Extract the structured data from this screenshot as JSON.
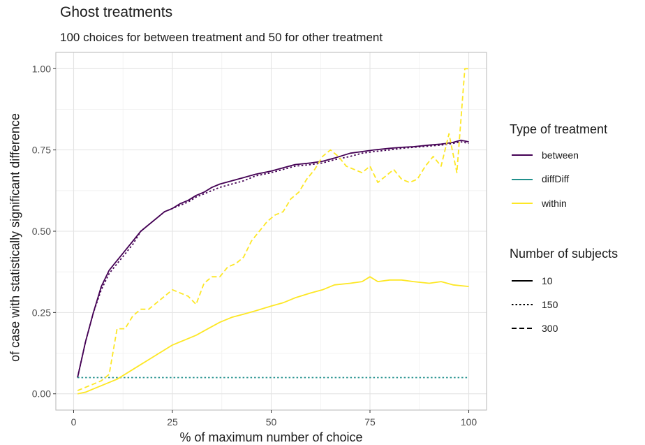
{
  "chart_data": {
    "type": "line",
    "title": "Ghost treatments",
    "subtitle": "100 choices for between treatment and 50 for other treatment",
    "xlabel": "% of maximum number of choice",
    "ylabel": "of case with statistically significant difference",
    "xlim": [
      -4.5,
      104.5
    ],
    "ylim": [
      -0.05,
      1.05
    ],
    "x_ticks": [
      0,
      25,
      50,
      75,
      100
    ],
    "y_ticks": [
      0,
      0.25,
      0.5,
      0.75,
      1
    ],
    "x_tick_labels": [
      "0",
      "25",
      "50",
      "75",
      "100"
    ],
    "y_tick_labels": [
      "0.00",
      "0.25",
      "0.50",
      "0.75",
      "1.00"
    ],
    "grid": true,
    "legend_position": "right",
    "legends": [
      {
        "title": "Type of treatment",
        "items": [
          {
            "label": "between",
            "color": "#440154"
          },
          {
            "label": "diffDiff",
            "color": "#21908C"
          },
          {
            "label": "within",
            "color": "#FDE725"
          }
        ]
      },
      {
        "title": "Number of subjects",
        "items": [
          {
            "label": "10",
            "dash": "solid"
          },
          {
            "label": "150",
            "dash": "dotted"
          },
          {
            "label": "300",
            "dash": "dashed"
          }
        ]
      }
    ],
    "series": [
      {
        "name": "between / 10",
        "treatment": "between",
        "subjects": "10",
        "color": "#440154",
        "dash": "solid",
        "points": [
          [
            1,
            0.05
          ],
          [
            3,
            0.16
          ],
          [
            5,
            0.25
          ],
          [
            7,
            0.33
          ],
          [
            9,
            0.38
          ],
          [
            11,
            0.41
          ],
          [
            13,
            0.44
          ],
          [
            15,
            0.47
          ],
          [
            17,
            0.5
          ],
          [
            19,
            0.52
          ],
          [
            21,
            0.54
          ],
          [
            23,
            0.56
          ],
          [
            25,
            0.57
          ],
          [
            27,
            0.585
          ],
          [
            29,
            0.595
          ],
          [
            31,
            0.61
          ],
          [
            33,
            0.62
          ],
          [
            35,
            0.635
          ],
          [
            37,
            0.645
          ],
          [
            40,
            0.655
          ],
          [
            43,
            0.665
          ],
          [
            46,
            0.675
          ],
          [
            50,
            0.685
          ],
          [
            53,
            0.695
          ],
          [
            56,
            0.705
          ],
          [
            60,
            0.71
          ],
          [
            63,
            0.715
          ],
          [
            66,
            0.725
          ],
          [
            70,
            0.74
          ],
          [
            73,
            0.745
          ],
          [
            76,
            0.75
          ],
          [
            80,
            0.755
          ],
          [
            83,
            0.758
          ],
          [
            86,
            0.76
          ],
          [
            90,
            0.765
          ],
          [
            93,
            0.768
          ],
          [
            96,
            0.773
          ],
          [
            98,
            0.78
          ],
          [
            100,
            0.775
          ]
        ]
      },
      {
        "name": "between / 150",
        "treatment": "between",
        "subjects": "150",
        "color": "#440154",
        "dash": "dotted",
        "points": [
          [
            1,
            0.05
          ],
          [
            3,
            0.16
          ],
          [
            5,
            0.25
          ],
          [
            7,
            0.32
          ],
          [
            9,
            0.37
          ],
          [
            11,
            0.4
          ],
          [
            13,
            0.43
          ],
          [
            15,
            0.46
          ],
          [
            17,
            0.5
          ],
          [
            19,
            0.52
          ],
          [
            21,
            0.54
          ],
          [
            23,
            0.56
          ],
          [
            25,
            0.57
          ],
          [
            27,
            0.58
          ],
          [
            29,
            0.59
          ],
          [
            31,
            0.605
          ],
          [
            33,
            0.615
          ],
          [
            35,
            0.625
          ],
          [
            37,
            0.635
          ],
          [
            40,
            0.645
          ],
          [
            43,
            0.655
          ],
          [
            46,
            0.67
          ],
          [
            50,
            0.68
          ],
          [
            53,
            0.69
          ],
          [
            56,
            0.7
          ],
          [
            60,
            0.705
          ],
          [
            63,
            0.71
          ],
          [
            66,
            0.72
          ],
          [
            70,
            0.73
          ],
          [
            73,
            0.74
          ],
          [
            76,
            0.745
          ],
          [
            80,
            0.75
          ],
          [
            83,
            0.755
          ],
          [
            86,
            0.758
          ],
          [
            90,
            0.762
          ],
          [
            93,
            0.765
          ],
          [
            96,
            0.77
          ],
          [
            98,
            0.775
          ],
          [
            100,
            0.77
          ]
        ]
      },
      {
        "name": "diffDiff / 150",
        "treatment": "diffDiff",
        "subjects": "150",
        "color": "#21908C",
        "dash": "dotted",
        "points": [
          [
            1,
            0.05
          ],
          [
            5,
            0.05
          ],
          [
            10,
            0.05
          ],
          [
            15,
            0.05
          ],
          [
            20,
            0.05
          ],
          [
            25,
            0.05
          ],
          [
            30,
            0.05
          ],
          [
            35,
            0.05
          ],
          [
            40,
            0.05
          ],
          [
            45,
            0.05
          ],
          [
            50,
            0.05
          ],
          [
            55,
            0.05
          ],
          [
            60,
            0.05
          ],
          [
            65,
            0.05
          ],
          [
            70,
            0.05
          ],
          [
            75,
            0.05
          ],
          [
            80,
            0.05
          ],
          [
            85,
            0.05
          ],
          [
            90,
            0.05
          ],
          [
            95,
            0.05
          ],
          [
            100,
            0.05
          ]
        ]
      },
      {
        "name": "within / 10",
        "treatment": "within",
        "subjects": "10",
        "color": "#FDE725",
        "dash": "solid",
        "points": [
          [
            1,
            0.0
          ],
          [
            3,
            0.005
          ],
          [
            5,
            0.015
          ],
          [
            7,
            0.025
          ],
          [
            9,
            0.035
          ],
          [
            11,
            0.045
          ],
          [
            13,
            0.06
          ],
          [
            15,
            0.075
          ],
          [
            17,
            0.09
          ],
          [
            19,
            0.105
          ],
          [
            21,
            0.12
          ],
          [
            23,
            0.135
          ],
          [
            25,
            0.15
          ],
          [
            28,
            0.165
          ],
          [
            31,
            0.18
          ],
          [
            34,
            0.2
          ],
          [
            37,
            0.22
          ],
          [
            40,
            0.235
          ],
          [
            43,
            0.245
          ],
          [
            46,
            0.255
          ],
          [
            50,
            0.27
          ],
          [
            53,
            0.28
          ],
          [
            56,
            0.295
          ],
          [
            60,
            0.31
          ],
          [
            63,
            0.32
          ],
          [
            66,
            0.335
          ],
          [
            70,
            0.34
          ],
          [
            73,
            0.345
          ],
          [
            75,
            0.36
          ],
          [
            77,
            0.345
          ],
          [
            80,
            0.35
          ],
          [
            83,
            0.35
          ],
          [
            86,
            0.345
          ],
          [
            90,
            0.34
          ],
          [
            93,
            0.345
          ],
          [
            96,
            0.335
          ],
          [
            100,
            0.33
          ]
        ]
      },
      {
        "name": "within / 300",
        "treatment": "within",
        "subjects": "300",
        "color": "#FDE725",
        "dash": "dashed",
        "points": [
          [
            1,
            0.01
          ],
          [
            3,
            0.02
          ],
          [
            5,
            0.03
          ],
          [
            7,
            0.04
          ],
          [
            9,
            0.06
          ],
          [
            11,
            0.2
          ],
          [
            13,
            0.2
          ],
          [
            15,
            0.24
          ],
          [
            17,
            0.26
          ],
          [
            19,
            0.26
          ],
          [
            21,
            0.28
          ],
          [
            23,
            0.3
          ],
          [
            25,
            0.32
          ],
          [
            27,
            0.31
          ],
          [
            29,
            0.3
          ],
          [
            31,
            0.275
          ],
          [
            33,
            0.34
          ],
          [
            35,
            0.36
          ],
          [
            37,
            0.36
          ],
          [
            39,
            0.39
          ],
          [
            41,
            0.4
          ],
          [
            43,
            0.42
          ],
          [
            45,
            0.47
          ],
          [
            47,
            0.5
          ],
          [
            49,
            0.53
          ],
          [
            51,
            0.55
          ],
          [
            53,
            0.56
          ],
          [
            55,
            0.6
          ],
          [
            57,
            0.62
          ],
          [
            59,
            0.66
          ],
          [
            61,
            0.69
          ],
          [
            63,
            0.73
          ],
          [
            65,
            0.75
          ],
          [
            67,
            0.73
          ],
          [
            69,
            0.7
          ],
          [
            71,
            0.69
          ],
          [
            73,
            0.68
          ],
          [
            75,
            0.7
          ],
          [
            77,
            0.65
          ],
          [
            79,
            0.67
          ],
          [
            81,
            0.69
          ],
          [
            83,
            0.66
          ],
          [
            85,
            0.65
          ],
          [
            87,
            0.66
          ],
          [
            89,
            0.7
          ],
          [
            91,
            0.73
          ],
          [
            93,
            0.7
          ],
          [
            95,
            0.8
          ],
          [
            97,
            0.68
          ],
          [
            99,
            1.0
          ],
          [
            100,
            1.0
          ]
        ]
      }
    ]
  }
}
